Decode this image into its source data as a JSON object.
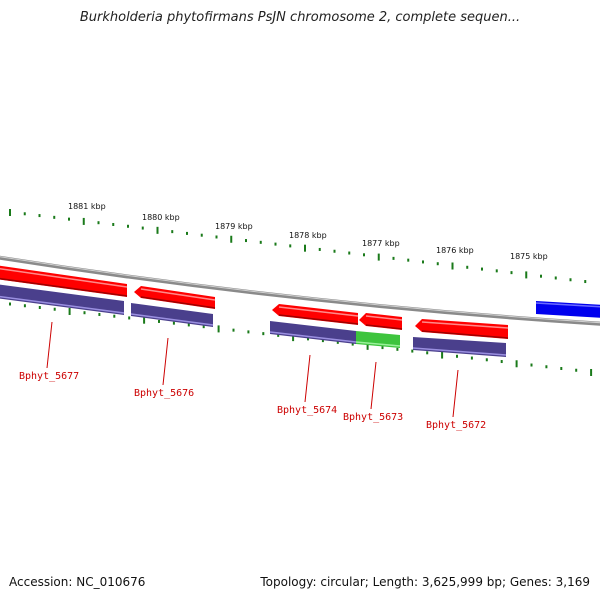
{
  "title": "Burkholderia phytofirmans PsJN chromosome 2, complete sequen...",
  "footer": {
    "accession": "Accession: NC_010676",
    "topology": "Topology: circular; Length: 3,625,999 bp; Genes: 3,169"
  },
  "scale_labels": [
    "1881 kbp",
    "1880 kbp",
    "1879 kbp",
    "1878 kbp",
    "1877 kbp",
    "1876 kbp",
    "1875 kbp"
  ],
  "gene_labels": [
    "Bphyt_5677",
    "Bphyt_5676",
    "Bphyt_5674",
    "Bphyt_5673",
    "Bphyt_5672"
  ],
  "colors": {
    "forward_gene": "#ff0000",
    "reverse_gene": "#0000ee",
    "cog_category": "#4a3f8c",
    "cog_green": "#3ec43e",
    "scale_ticks": "#1a7a1a",
    "backbone": "#888888",
    "label": "#cc0000"
  }
}
